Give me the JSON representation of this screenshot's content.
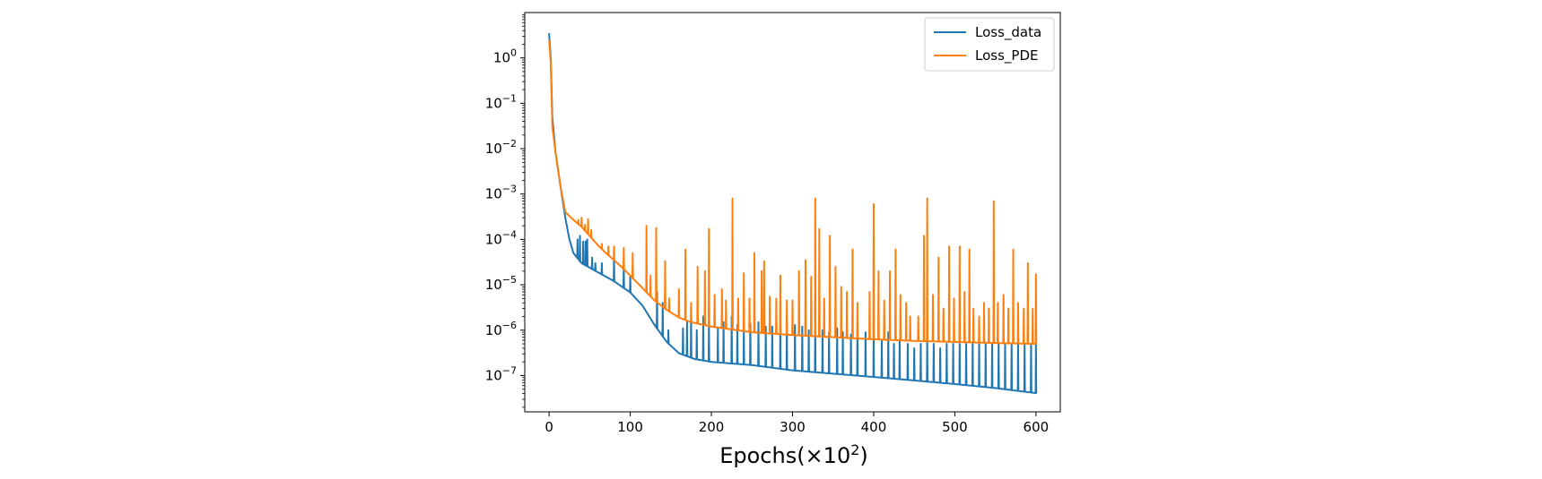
{
  "chart_data": {
    "type": "line",
    "title": "",
    "xlabel": "Epochs(×10",
    "xlabel_exp": "2",
    "xlabel_close": ")",
    "ylabel": "",
    "xlim": [
      -30,
      630
    ],
    "ylim_log10": [
      -7.8,
      1.0
    ],
    "yscale": "log",
    "grid": false,
    "legend": "top-right",
    "x_ticks": [
      {
        "value": 0,
        "label": "0"
      },
      {
        "value": 100,
        "label": "100"
      },
      {
        "value": 200,
        "label": "200"
      },
      {
        "value": 300,
        "label": "300"
      },
      {
        "value": 400,
        "label": "400"
      },
      {
        "value": 500,
        "label": "500"
      },
      {
        "value": 600,
        "label": "600"
      }
    ],
    "y_ticks": [
      {
        "exp": 0,
        "base": "10",
        "sup": "0"
      },
      {
        "exp": -1,
        "base": "10",
        "sup": "−1"
      },
      {
        "exp": -2,
        "base": "10",
        "sup": "−2"
      },
      {
        "exp": -3,
        "base": "10",
        "sup": "−3"
      },
      {
        "exp": -4,
        "base": "10",
        "sup": "−4"
      },
      {
        "exp": -5,
        "base": "10",
        "sup": "−5"
      },
      {
        "exp": -6,
        "base": "10",
        "sup": "−6"
      },
      {
        "exp": -7,
        "base": "10",
        "sup": "−7"
      }
    ],
    "series": [
      {
        "name": "Loss_data",
        "color": "#1f77b4",
        "baseline": [
          [
            0,
            3.5
          ],
          [
            2,
            1.0
          ],
          [
            4,
            0.05
          ],
          [
            8,
            0.008
          ],
          [
            14,
            0.0015
          ],
          [
            20,
            0.0003
          ],
          [
            25,
            0.0001
          ],
          [
            30,
            5e-05
          ],
          [
            40,
            3e-05
          ],
          [
            60,
            1.9e-05
          ],
          [
            80,
            1.2e-05
          ],
          [
            100,
            6.8e-06
          ],
          [
            115,
            3.5e-06
          ],
          [
            130,
            1.3e-06
          ],
          [
            145,
            5.5e-07
          ],
          [
            160,
            3.1e-07
          ],
          [
            180,
            2.3e-07
          ],
          [
            200,
            2e-07
          ],
          [
            250,
            1.7e-07
          ],
          [
            300,
            1.3e-07
          ],
          [
            350,
            1.1e-07
          ],
          [
            400,
            9.3e-08
          ],
          [
            450,
            7.8e-08
          ],
          [
            500,
            6.5e-08
          ],
          [
            550,
            5.3e-08
          ],
          [
            600,
            4.1e-08
          ]
        ],
        "spikes": [
          [
            35,
            0.0001
          ],
          [
            38,
            0.00012
          ],
          [
            42,
            9e-05
          ],
          [
            45,
            9e-05
          ],
          [
            47,
            0.0001
          ],
          [
            53,
            4e-05
          ],
          [
            57,
            3e-05
          ],
          [
            65,
            3e-05
          ],
          [
            80,
            4e-05
          ],
          [
            92,
            2.5e-05
          ],
          [
            100,
            1.5e-05
          ],
          [
            133,
            7e-06
          ],
          [
            140,
            4e-06
          ],
          [
            147,
            1e-06
          ],
          [
            165,
            1.1e-06
          ],
          [
            170,
            1.5e-06
          ],
          [
            175,
            2e-06
          ],
          [
            182,
            1e-06
          ],
          [
            190,
            2e-06
          ],
          [
            197,
            1.2e-06
          ],
          [
            208,
            1.1e-06
          ],
          [
            215,
            1.5e-06
          ],
          [
            225,
            2e-06
          ],
          [
            232,
            1.3e-06
          ],
          [
            240,
            1.1e-06
          ],
          [
            248,
            1.4e-06
          ],
          [
            258,
            1.5e-06
          ],
          [
            267,
            1.2e-06
          ],
          [
            275,
            1.2e-06
          ],
          [
            285,
            1.4e-06
          ],
          [
            293,
            1.1e-06
          ],
          [
            303,
            1.3e-06
          ],
          [
            312,
            1.2e-06
          ],
          [
            320,
            1e-06
          ],
          [
            328,
            1.4e-06
          ],
          [
            337,
            1e-06
          ],
          [
            345,
            9e-07
          ],
          [
            355,
            1.1e-06
          ],
          [
            362,
            9e-07
          ],
          [
            372,
            8e-07
          ],
          [
            380,
            1.1e-06
          ],
          [
            390,
            9e-07
          ],
          [
            400,
            7e-07
          ],
          [
            410,
            6e-07
          ],
          [
            418,
            9e-07
          ],
          [
            425,
            5e-07
          ],
          [
            432,
            6e-07
          ],
          [
            442,
            5e-07
          ],
          [
            450,
            4e-07
          ],
          [
            458,
            5e-07
          ],
          [
            466,
            6e-07
          ],
          [
            474,
            5e-07
          ],
          [
            482,
            4e-07
          ],
          [
            490,
            5e-07
          ],
          [
            498,
            5e-07
          ],
          [
            506,
            5e-07
          ],
          [
            514,
            5e-07
          ],
          [
            522,
            5e-07
          ],
          [
            530,
            5e-07
          ],
          [
            538,
            5e-07
          ],
          [
            546,
            5e-07
          ],
          [
            554,
            5e-07
          ],
          [
            562,
            5e-07
          ],
          [
            570,
            5e-07
          ],
          [
            578,
            5e-07
          ],
          [
            586,
            5e-07
          ],
          [
            594,
            5e-07
          ],
          [
            600,
            5e-07
          ]
        ]
      },
      {
        "name": "Loss_PDE",
        "color": "#ff7f0e",
        "baseline": [
          [
            0,
            2.5
          ],
          [
            2,
            0.8
          ],
          [
            4,
            0.03
          ],
          [
            8,
            0.008
          ],
          [
            14,
            0.0015
          ],
          [
            20,
            0.0004
          ],
          [
            30,
            0.00027
          ],
          [
            40,
            0.00019
          ],
          [
            50,
            0.00012
          ],
          [
            60,
            7.5e-05
          ],
          [
            70,
            5e-05
          ],
          [
            80,
            3.5e-05
          ],
          [
            90,
            2.4e-05
          ],
          [
            100,
            1.6e-05
          ],
          [
            115,
            8.5e-06
          ],
          [
            130,
            4.5e-06
          ],
          [
            145,
            2.8e-06
          ],
          [
            160,
            1.9e-06
          ],
          [
            175,
            1.5e-06
          ],
          [
            200,
            1.2e-06
          ],
          [
            250,
            9e-07
          ],
          [
            300,
            7.8e-07
          ],
          [
            350,
            7e-07
          ],
          [
            400,
            6.3e-07
          ],
          [
            450,
            5.8e-07
          ],
          [
            500,
            5.5e-07
          ],
          [
            550,
            5.2e-07
          ],
          [
            600,
            5e-07
          ]
        ],
        "spikes": [
          [
            36,
            0.00027
          ],
          [
            40,
            0.0003
          ],
          [
            44,
            0.00021
          ],
          [
            48,
            0.00028
          ],
          [
            52,
            0.00016
          ],
          [
            65,
            8e-05
          ],
          [
            73,
            7e-05
          ],
          [
            80,
            7e-05
          ],
          [
            92,
            6.5e-05
          ],
          [
            103,
            5e-05
          ],
          [
            120,
            0.0002
          ],
          [
            125,
            1.6e-05
          ],
          [
            132,
            0.00018
          ],
          [
            143,
            3.3e-05
          ],
          [
            148,
            5e-06
          ],
          [
            160,
            8e-06
          ],
          [
            168,
            6e-05
          ],
          [
            175,
            4e-06
          ],
          [
            183,
            2.5e-05
          ],
          [
            192,
            2e-05
          ],
          [
            197,
            0.00017
          ],
          [
            204,
            6e-06
          ],
          [
            213,
            8e-06
          ],
          [
            218,
            4.5e-06
          ],
          [
            226,
            0.0008
          ],
          [
            233,
            5e-06
          ],
          [
            240,
            1.8e-05
          ],
          [
            247,
            5e-06
          ],
          [
            253,
            5e-05
          ],
          [
            262,
            2e-05
          ],
          [
            265,
            3.3e-05
          ],
          [
            272,
            5.5e-06
          ],
          [
            280,
            5e-06
          ],
          [
            285,
            1.6e-05
          ],
          [
            293,
            4.5e-06
          ],
          [
            300,
            4.5e-06
          ],
          [
            308,
            2e-05
          ],
          [
            316,
            3.5e-05
          ],
          [
            323,
            1.5e-05
          ],
          [
            328,
            0.0008
          ],
          [
            333,
            0.00017
          ],
          [
            339,
            5e-06
          ],
          [
            346,
            0.00012
          ],
          [
            353,
            2.5e-05
          ],
          [
            360,
            9e-06
          ],
          [
            367,
            7e-06
          ],
          [
            374,
            6e-05
          ],
          [
            380,
            4e-06
          ],
          [
            395,
            7e-06
          ],
          [
            400,
            0.0006
          ],
          [
            406,
            2e-05
          ],
          [
            413,
            4.5e-06
          ],
          [
            420,
            2e-05
          ],
          [
            427,
            6e-05
          ],
          [
            433,
            6e-06
          ],
          [
            440,
            4e-06
          ],
          [
            445,
            2e-06
          ],
          [
            455,
            2e-06
          ],
          [
            462,
            0.00012
          ],
          [
            466,
            0.0008
          ],
          [
            473,
            6e-06
          ],
          [
            480,
            4e-05
          ],
          [
            486,
            3e-06
          ],
          [
            493,
            7e-05
          ],
          [
            499,
            5e-06
          ],
          [
            506,
            7e-05
          ],
          [
            512,
            7e-06
          ],
          [
            518,
            6e-05
          ],
          [
            523,
            3e-06
          ],
          [
            530,
            2e-06
          ],
          [
            536,
            4e-06
          ],
          [
            542,
            3e-06
          ],
          [
            548,
            0.0007
          ],
          [
            553,
            4e-06
          ],
          [
            560,
            6e-06
          ],
          [
            566,
            3e-06
          ],
          [
            572,
            6e-05
          ],
          [
            578,
            4e-06
          ],
          [
            585,
            3e-06
          ],
          [
            590,
            3e-05
          ],
          [
            596,
            3e-06
          ],
          [
            600,
            1.7e-05
          ]
        ]
      }
    ]
  }
}
